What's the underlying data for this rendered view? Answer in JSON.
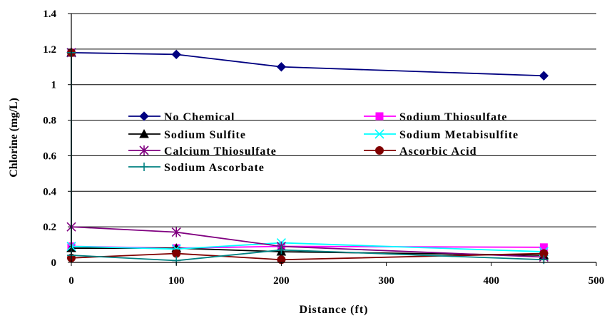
{
  "chart_data": {
    "type": "line",
    "title": "",
    "xlabel": "Distance (ft)",
    "ylabel": "Chlorine (mg/L)",
    "xlim": [
      0,
      500
    ],
    "ylim": [
      0,
      1.4
    ],
    "xticks": [
      "0",
      "100",
      "200",
      "300",
      "400",
      "500"
    ],
    "yticks": [
      "0",
      "0.2",
      "0.4",
      "0.6",
      "0.8",
      "1",
      "1.2",
      "1.4"
    ],
    "grid": "horizontal",
    "legend_position": "inside-center",
    "series": [
      {
        "name": "No Chemical",
        "color": "#000080",
        "marker": "diamond",
        "x": [
          0,
          100,
          200,
          450
        ],
        "y": [
          1.18,
          1.17,
          1.1,
          1.05
        ]
      },
      {
        "name": "Sodium Thiosulfate",
        "color": "#ff00ff",
        "marker": "square",
        "x": [
          0,
          0,
          100,
          200,
          450
        ],
        "y": [
          1.18,
          0.09,
          0.08,
          0.09,
          0.085
        ]
      },
      {
        "name": "Sodium Sulfite",
        "color": "#000000",
        "marker": "triangle",
        "x": [
          0,
          0,
          100,
          200,
          450
        ],
        "y": [
          1.18,
          0.08,
          0.08,
          0.06,
          0.04
        ]
      },
      {
        "name": "Sodium Metabisulfite",
        "color": "#00ffff",
        "marker": "x",
        "x": [
          0,
          0,
          100,
          200,
          450
        ],
        "y": [
          1.18,
          0.09,
          0.075,
          0.11,
          0.06
        ]
      },
      {
        "name": "Calcium Thiosulfate",
        "color": "#800080",
        "marker": "star",
        "x": [
          0,
          0,
          100,
          200,
          450
        ],
        "y": [
          1.18,
          0.2,
          0.17,
          0.09,
          0.03
        ]
      },
      {
        "name": "Ascorbic Acid",
        "color": "#800000",
        "marker": "circle",
        "x": [
          0,
          0,
          100,
          200,
          450
        ],
        "y": [
          1.18,
          0.025,
          0.05,
          0.015,
          0.05
        ]
      },
      {
        "name": "Sodium Ascorbate",
        "color": "#008080",
        "marker": "plus",
        "x": [
          0,
          0,
          100,
          200,
          450
        ],
        "y": [
          1.18,
          0.04,
          0.01,
          0.07,
          0.015
        ]
      }
    ]
  }
}
